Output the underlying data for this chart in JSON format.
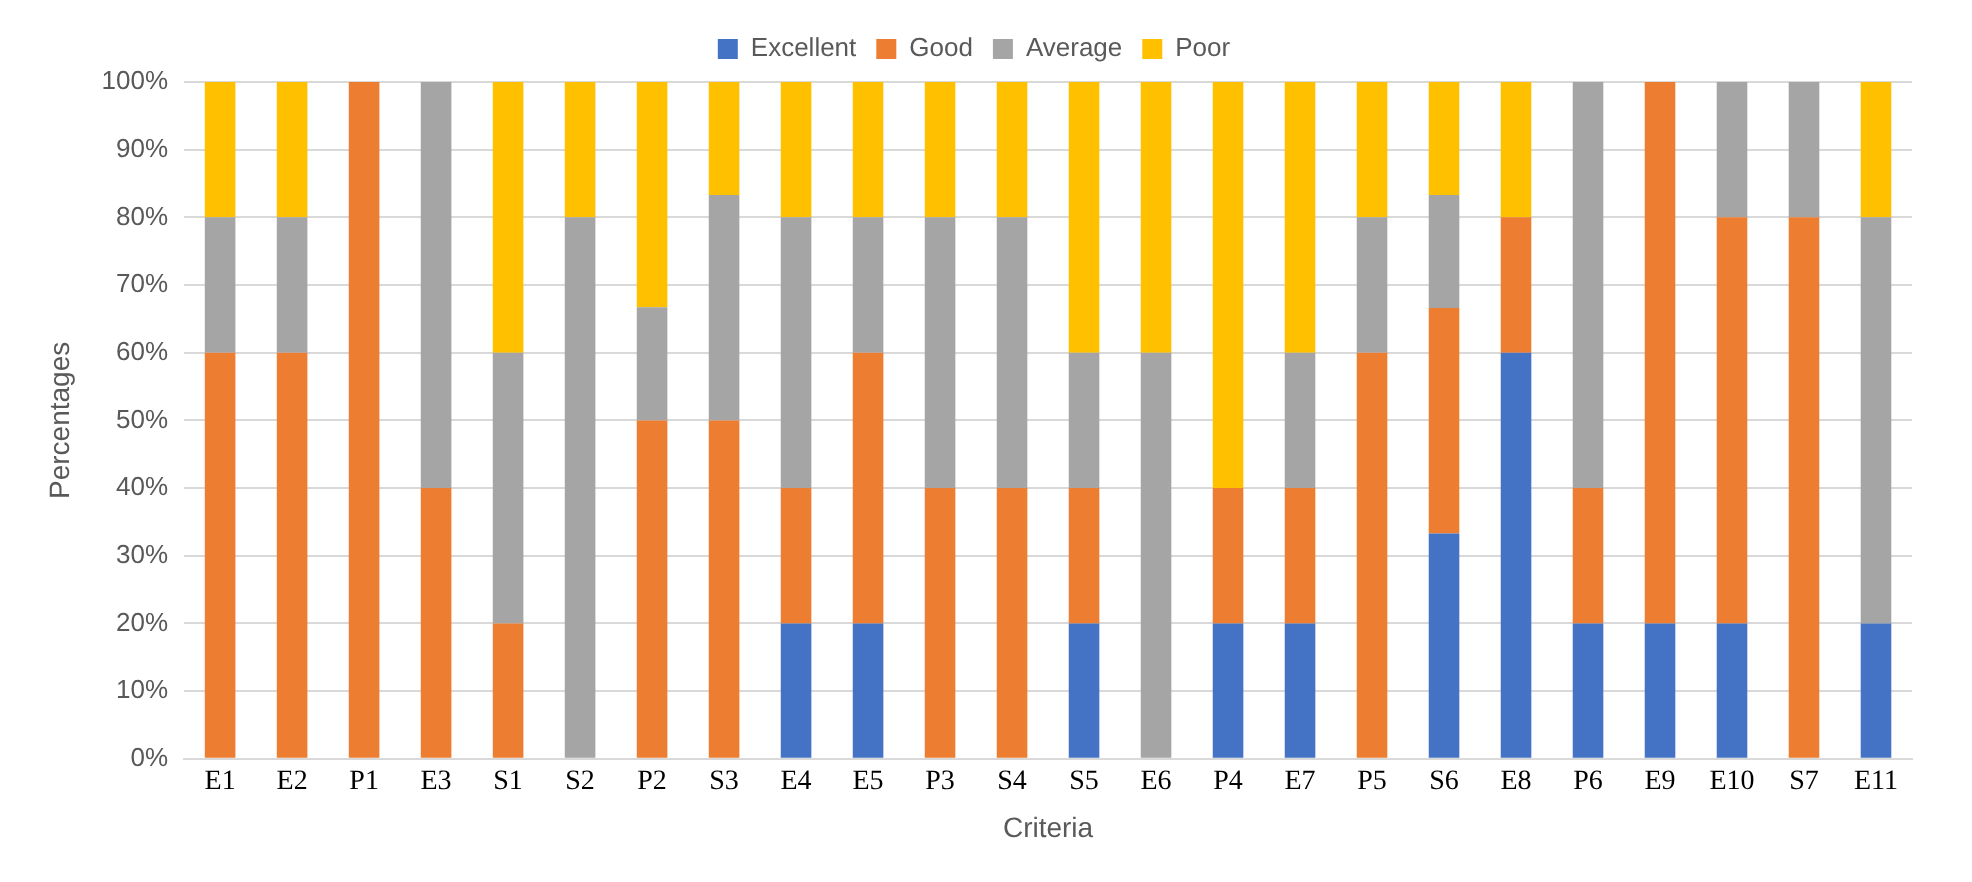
{
  "chart_data": {
    "type": "bar",
    "stacked": true,
    "xlabel": "Criteria",
    "ylabel": "Percentages",
    "categories": [
      "E1",
      "E2",
      "P1",
      "E3",
      "S1",
      "S2",
      "P2",
      "S3",
      "E4",
      "E5",
      "P3",
      "S4",
      "S5",
      "E6",
      "P4",
      "E7",
      "P5",
      "S6",
      "E8",
      "P6",
      "E9",
      "E10",
      "S7",
      "E11"
    ],
    "series": [
      {
        "name": "Excellent",
        "color": "#4472c4",
        "values": [
          0,
          0,
          0,
          0,
          0,
          0,
          0,
          0,
          20,
          20,
          0,
          0,
          20,
          0,
          20,
          20,
          0,
          33.3,
          60,
          20,
          20,
          20,
          0,
          20
        ]
      },
      {
        "name": "Good",
        "color": "#ed7d31",
        "values": [
          60,
          60,
          100,
          40,
          20,
          0,
          50,
          50,
          20,
          40,
          40,
          40,
          20,
          0,
          20,
          20,
          60,
          33.3,
          20,
          20,
          80,
          60,
          80,
          0
        ]
      },
      {
        "name": "Average",
        "color": "#a5a5a5",
        "values": [
          20,
          20,
          0,
          60,
          40,
          80,
          16.7,
          33.3,
          40,
          20,
          40,
          40,
          20,
          60,
          0,
          20,
          20,
          16.7,
          0,
          60,
          0,
          20,
          20,
          60
        ]
      },
      {
        "name": "Poor",
        "color": "#ffc000",
        "values": [
          20,
          20,
          0,
          0,
          40,
          20,
          33.3,
          16.7,
          20,
          20,
          20,
          20,
          40,
          40,
          60,
          40,
          20,
          16.7,
          20,
          0,
          0,
          0,
          0,
          20
        ]
      }
    ],
    "ylim": [
      0,
      100
    ],
    "yticks": [
      {
        "value": 0,
        "label": "0%"
      },
      {
        "value": 10,
        "label": "10%"
      },
      {
        "value": 20,
        "label": "20%"
      },
      {
        "value": 30,
        "label": "30%"
      },
      {
        "value": 40,
        "label": "40%"
      },
      {
        "value": 50,
        "label": "50%"
      },
      {
        "value": 60,
        "label": "60%"
      },
      {
        "value": 70,
        "label": "70%"
      },
      {
        "value": 80,
        "label": "80%"
      },
      {
        "value": 90,
        "label": "90%"
      },
      {
        "value": 100,
        "label": "100%"
      }
    ],
    "grid": "y",
    "legend": "top"
  }
}
